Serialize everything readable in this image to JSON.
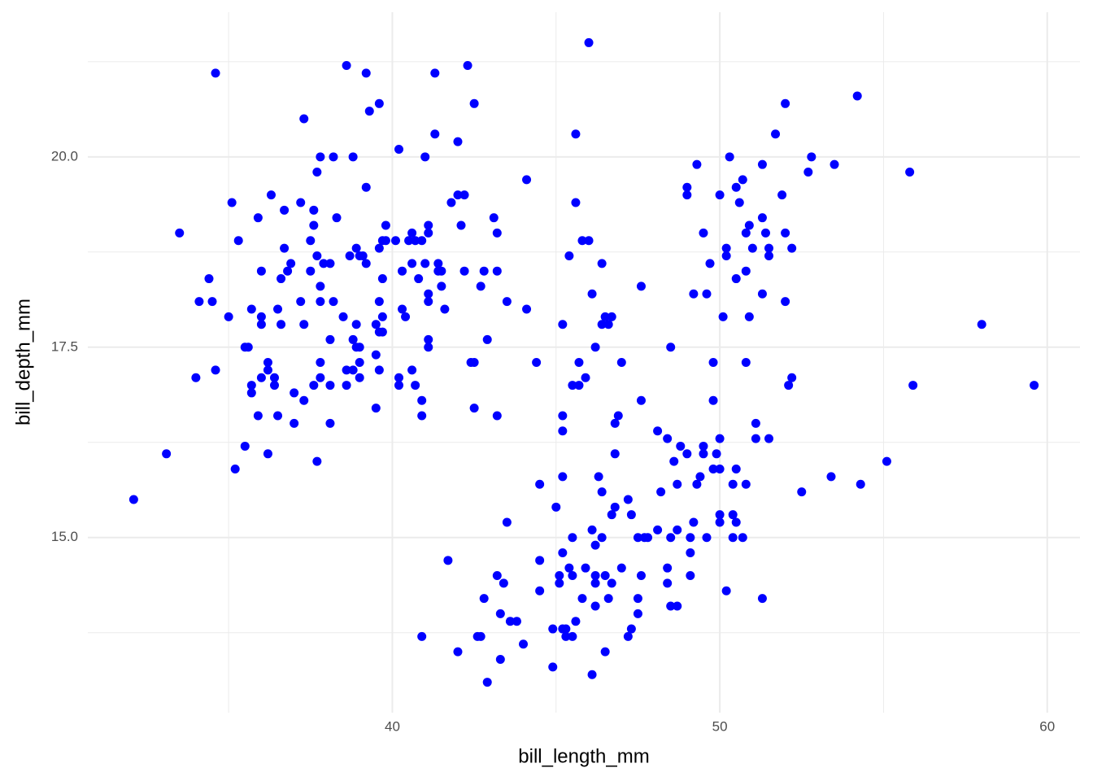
{
  "chart_data": {
    "type": "scatter",
    "x_label": "bill_length_mm",
    "y_label": "bill_depth_mm",
    "color": "blue",
    "grid": true,
    "xlim": [
      30.7,
      61.0
    ],
    "ylim": [
      12.7,
      21.9
    ],
    "xticks": [
      40,
      50,
      60
    ],
    "yticks": [
      {
        "value": 15,
        "label": "15.0"
      },
      17.5,
      {
        "value": 20,
        "label": "20.0"
      }
    ],
    "minor_xticks": [
      35,
      45,
      55
    ],
    "minor_yticks": [
      13.75,
      16.25,
      18.75,
      21.25
    ],
    "x": [
      32.1,
      33.1,
      33.5,
      34.1,
      34.4,
      34.5,
      34.6,
      34.6,
      34.0,
      35.0,
      35.1,
      35.3,
      35.2,
      35.5,
      35.5,
      35.6,
      35.7,
      35.7,
      35.7,
      35.9,
      35.9,
      36.0,
      36.0,
      36.0,
      36.0,
      36.2,
      36.2,
      36.2,
      36.3,
      36.4,
      36.4,
      36.5,
      36.5,
      36.6,
      36.6,
      36.7,
      36.7,
      36.8,
      36.9,
      37.0,
      37.0,
      37.2,
      37.2,
      37.3,
      37.3,
      37.3,
      37.5,
      37.5,
      37.6,
      37.6,
      37.6,
      37.7,
      37.7,
      37.7,
      37.8,
      37.8,
      37.8,
      37.8,
      37.8,
      37.9,
      38.1,
      38.1,
      38.1,
      38.1,
      38.2,
      38.2,
      38.3,
      38.5,
      38.6,
      38.6,
      38.6,
      38.7,
      38.8,
      38.8,
      38.8,
      38.9,
      38.9,
      38.9,
      39.0,
      39.0,
      39.0,
      39.0,
      39.1,
      39.2,
      39.2,
      39.2,
      39.3,
      39.5,
      39.5,
      39.5,
      39.6,
      39.6,
      39.6,
      39.6,
      39.6,
      39.7,
      39.7,
      39.7,
      39.7,
      39.8,
      39.8,
      40.1,
      40.2,
      40.2,
      40.2,
      40.3,
      40.3,
      40.4,
      40.5,
      40.6,
      40.6,
      40.6,
      40.7,
      40.7,
      40.8,
      40.9,
      40.9,
      40.9,
      40.9,
      41.0,
      41.0,
      41.1,
      41.1,
      41.1,
      41.1,
      41.1,
      41.1,
      41.3,
      41.3,
      41.4,
      41.4,
      41.5,
      41.5,
      41.6,
      41.7,
      41.8,
      42.0,
      42.0,
      42.0,
      42.1,
      42.2,
      42.2,
      42.3,
      42.4,
      42.5,
      42.5,
      42.5,
      42.6,
      42.7,
      42.7,
      42.8,
      42.8,
      42.9,
      42.9,
      43.1,
      43.2,
      43.2,
      43.2,
      43.2,
      43.3,
      43.3,
      43.4,
      43.5,
      43.5,
      43.6,
      43.8,
      44.0,
      44.1,
      44.1,
      44.4,
      44.5,
      44.5,
      44.5,
      44.9,
      44.9,
      45.0,
      45.1,
      45.1,
      45.2,
      45.2,
      45.2,
      45.2,
      45.2,
      45.2,
      45.3,
      45.3,
      45.4,
      45.4,
      45.5,
      45.5,
      45.5,
      45.5,
      45.6,
      45.6,
      45.6,
      45.7,
      45.7,
      45.8,
      45.8,
      45.9,
      45.9,
      46.0,
      46.0,
      46.1,
      46.1,
      46.1,
      46.2,
      46.2,
      46.2,
      46.2,
      46.2,
      46.3,
      46.4,
      46.4,
      46.4,
      46.4,
      46.5,
      46.5,
      46.5,
      46.6,
      46.6,
      46.7,
      46.7,
      46.7,
      46.8,
      46.8,
      46.8,
      46.9,
      47.0,
      47.0,
      47.2,
      47.2,
      47.3,
      47.3,
      47.5,
      47.5,
      47.5,
      47.6,
      47.6,
      47.6,
      47.7,
      47.8,
      48.1,
      48.1,
      48.2,
      48.4,
      48.4,
      48.4,
      48.5,
      48.5,
      48.5,
      48.6,
      48.7,
      48.7,
      48.7,
      48.8,
      49.0,
      49.0,
      49.0,
      49.1,
      49.1,
      49.1,
      49.2,
      49.2,
      49.3,
      49.3,
      49.4,
      49.5,
      49.5,
      49.5,
      49.6,
      49.6,
      49.7,
      49.8,
      49.8,
      49.8,
      49.9,
      50.0,
      50.0,
      50.0,
      50.0,
      50.0,
      50.1,
      50.2,
      50.2,
      50.2,
      50.3,
      50.4,
      50.4,
      50.4,
      50.5,
      50.5,
      50.5,
      50.5,
      50.6,
      50.7,
      50.7,
      50.8,
      50.8,
      50.8,
      50.8,
      50.9,
      50.9,
      51.0,
      51.1,
      51.1,
      51.3,
      51.3,
      51.3,
      51.3,
      51.4,
      51.5,
      51.5,
      51.5,
      51.7,
      51.9,
      52.0,
      52.0,
      52.0,
      52.1,
      52.2,
      52.2,
      52.5,
      52.7,
      52.8,
      53.4,
      53.5,
      54.2,
      54.3,
      55.1,
      55.8,
      55.9,
      58.0,
      59.6
    ],
    "values": [
      15.5,
      16.1,
      19.0,
      18.1,
      18.4,
      18.1,
      21.1,
      17.2,
      17.1,
      17.9,
      19.4,
      18.9,
      15.9,
      16.2,
      17.5,
      17.5,
      18.0,
      17.0,
      16.9,
      16.6,
      19.2,
      17.9,
      17.8,
      17.1,
      18.5,
      16.1,
      17.3,
      17.2,
      19.5,
      17.1,
      17.0,
      18.0,
      16.6,
      18.4,
      17.8,
      19.3,
      18.8,
      18.5,
      18.6,
      16.5,
      16.9,
      19.4,
      18.1,
      16.8,
      20.5,
      17.8,
      18.5,
      18.9,
      17.0,
      19.3,
      19.1,
      19.8,
      18.7,
      16.0,
      18.3,
      17.3,
      17.1,
      20.0,
      18.1,
      18.6,
      18.6,
      16.5,
      17.6,
      17.0,
      18.1,
      20.0,
      19.2,
      17.9,
      21.2,
      17.2,
      17.0,
      18.7,
      20.0,
      17.6,
      17.2,
      17.5,
      17.8,
      18.8,
      18.7,
      17.3,
      17.5,
      17.1,
      18.7,
      19.6,
      18.6,
      21.1,
      20.6,
      16.7,
      17.4,
      17.8,
      20.7,
      17.2,
      18.1,
      17.7,
      18.8,
      17.9,
      18.4,
      17.7,
      18.9,
      18.9,
      19.1,
      18.9,
      20.1,
      17.1,
      17.0,
      18.0,
      18.5,
      17.9,
      18.9,
      19.0,
      17.2,
      18.6,
      17.0,
      18.9,
      18.4,
      18.9,
      16.8,
      16.6,
      13.7,
      20.0,
      18.6,
      19.0,
      19.1,
      18.1,
      18.2,
      17.6,
      17.5,
      20.3,
      21.1,
      18.6,
      18.5,
      18.5,
      18.3,
      18.0,
      14.7,
      19.4,
      19.5,
      20.2,
      13.5,
      19.1,
      19.5,
      18.5,
      21.2,
      17.3,
      20.7,
      17.3,
      16.7,
      13.7,
      13.7,
      18.3,
      18.5,
      14.2,
      17.6,
      13.1,
      19.2,
      19.0,
      18.5,
      16.6,
      14.5,
      14.0,
      13.4,
      14.4,
      18.1,
      15.2,
      13.9,
      13.9,
      13.6,
      19.7,
      18.0,
      17.3,
      15.7,
      14.7,
      14.3,
      13.3,
      13.8,
      15.4,
      14.5,
      14.4,
      17.8,
      16.6,
      16.4,
      15.8,
      14.8,
      13.8,
      13.8,
      13.7,
      18.7,
      14.6,
      13.7,
      15.0,
      14.5,
      17.0,
      19.4,
      20.3,
      13.9,
      17.3,
      17.0,
      18.9,
      14.2,
      17.1,
      14.6,
      21.5,
      18.9,
      15.1,
      13.2,
      18.2,
      14.5,
      14.1,
      14.4,
      14.9,
      17.5,
      15.8,
      18.6,
      15.6,
      15.0,
      17.8,
      13.5,
      17.9,
      14.5,
      17.8,
      14.2,
      17.9,
      15.3,
      14.4,
      15.4,
      16.1,
      16.5,
      16.6,
      14.6,
      17.3,
      15.5,
      13.7,
      13.8,
      15.3,
      15.0,
      14.0,
      14.2,
      16.8,
      14.5,
      18.3,
      15.0,
      15.0,
      16.4,
      15.1,
      15.6,
      14.4,
      14.6,
      16.3,
      17.5,
      15.0,
      14.1,
      16.0,
      15.1,
      14.1,
      15.7,
      16.2,
      19.6,
      19.5,
      16.1,
      15.0,
      14.5,
      14.8,
      18.2,
      15.2,
      19.9,
      15.7,
      15.8,
      19.0,
      16.2,
      16.1,
      18.2,
      15.0,
      18.6,
      17.3,
      16.8,
      15.9,
      16.1,
      19.5,
      15.9,
      15.3,
      15.2,
      16.3,
      17.9,
      18.8,
      18.7,
      14.3,
      20.0,
      15.0,
      15.3,
      15.7,
      15.9,
      18.4,
      19.6,
      15.2,
      19.4,
      19.7,
      15.0,
      19.0,
      18.5,
      15.7,
      17.3,
      19.1,
      17.9,
      18.8,
      16.5,
      16.3,
      19.2,
      18.2,
      19.9,
      14.2,
      19.0,
      18.8,
      16.3,
      18.7,
      20.3,
      19.5,
      20.7,
      19.0,
      18.1,
      17.0,
      17.1,
      18.8,
      15.6,
      19.8,
      20.0,
      15.8,
      19.9,
      20.8,
      15.7,
      16.0,
      19.8,
      17.0,
      17.8,
      17.0
    ]
  }
}
